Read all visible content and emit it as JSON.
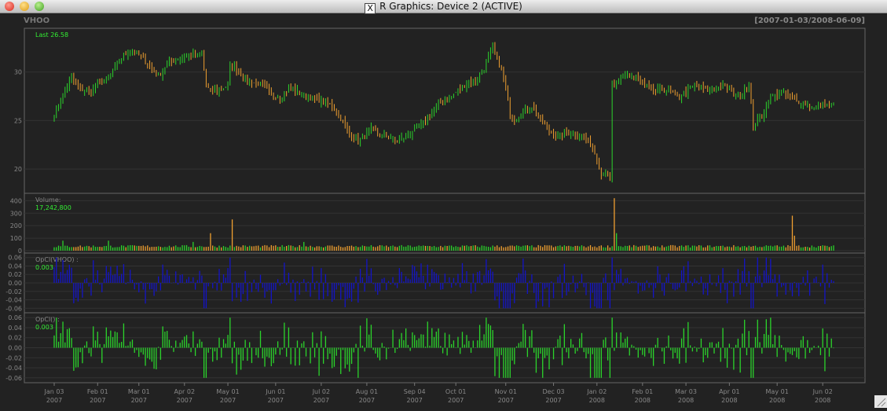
{
  "window": {
    "title": "R Graphics: Device 2 (ACTIVE)"
  },
  "colors": {
    "up": "#2bd42b",
    "down": "#f0a030",
    "opcl_vhoo": "#1414c8",
    "opcl": "#2bd42b",
    "label": "#777777",
    "green_text": "#33ee33"
  },
  "chart_data": {
    "type": "bar",
    "symbol": "VHOO",
    "date_range": "[2007-01-03/2008-06-09]",
    "panels": [
      {
        "id": "price",
        "label": "Last 26.58",
        "ylim": [
          17.5,
          34.5
        ],
        "yticks": [
          "20",
          "25",
          "30"
        ]
      },
      {
        "id": "volume",
        "label": "Volume:",
        "value_text": "17,242,800",
        "ylim": [
          0,
          440
        ],
        "yticks": [
          "0",
          "100",
          "200",
          "300",
          "400"
        ]
      },
      {
        "id": "opcl_vhoo",
        "label": "OpCl(VHOO) :",
        "value_text": "0.003",
        "ylim": [
          -0.065,
          0.065
        ],
        "yticks": [
          "-0.06",
          "-0.04",
          "-0.02",
          "0.00",
          "0.02",
          "0.04",
          "0.06"
        ]
      },
      {
        "id": "opcl",
        "label": "OpCl() :",
        "value_text": "0.003",
        "ylim": [
          -0.065,
          0.065
        ],
        "yticks": [
          "-0.06",
          "-0.04",
          "-0.02",
          "0.00",
          "0.02",
          "0.04",
          "0.06"
        ]
      }
    ],
    "x_ticks": [
      {
        "month": "Jan 03",
        "year": "2007",
        "i": 0
      },
      {
        "month": "Feb 01",
        "year": "2007",
        "i": 20
      },
      {
        "month": "Mar 01",
        "year": "2007",
        "i": 39
      },
      {
        "month": "Apr 02",
        "year": "2007",
        "i": 60
      },
      {
        "month": "May 01",
        "year": "2007",
        "i": 80
      },
      {
        "month": "Jun 01",
        "year": "2007",
        "i": 102
      },
      {
        "month": "Jul 02",
        "year": "2007",
        "i": 123
      },
      {
        "month": "Aug 01",
        "year": "2007",
        "i": 144
      },
      {
        "month": "Sep 04",
        "year": "2007",
        "i": 166
      },
      {
        "month": "Oct 01",
        "year": "2007",
        "i": 185
      },
      {
        "month": "Nov 01",
        "year": "2007",
        "i": 208
      },
      {
        "month": "Dec 03",
        "year": "2007",
        "i": 230
      },
      {
        "month": "Jan 02",
        "year": "2008",
        "i": 250
      },
      {
        "month": "Feb 01",
        "year": "2008",
        "i": 271
      },
      {
        "month": "Mar 03",
        "year": "2008",
        "i": 291
      },
      {
        "month": "Apr 01",
        "year": "2008",
        "i": 311
      },
      {
        "month": "May 01",
        "year": "2008",
        "i": 333
      },
      {
        "month": "Jun 02",
        "year": "2008",
        "i": 354
      }
    ],
    "n_bars": 360,
    "close_anchors": [
      [
        0,
        25.7
      ],
      [
        4,
        27.5
      ],
      [
        8,
        29.4
      ],
      [
        12,
        28.2
      ],
      [
        16,
        28.0
      ],
      [
        20,
        28.6
      ],
      [
        24,
        29.2
      ],
      [
        28,
        30.4
      ],
      [
        32,
        31.8
      ],
      [
        36,
        32.2
      ],
      [
        40,
        31.5
      ],
      [
        44,
        30.6
      ],
      [
        48,
        29.6
      ],
      [
        52,
        30.8
      ],
      [
        56,
        31.3
      ],
      [
        60,
        31.6
      ],
      [
        64,
        31.8
      ],
      [
        66,
        31.5
      ],
      [
        68,
        31.9
      ],
      [
        70,
        28.5
      ],
      [
        72,
        28.1
      ],
      [
        76,
        28.2
      ],
      [
        78,
        28.4
      ],
      [
        80,
        28.6
      ],
      [
        81,
        30.8
      ],
      [
        84,
        30.3
      ],
      [
        88,
        29.2
      ],
      [
        92,
        28.9
      ],
      [
        96,
        28.6
      ],
      [
        100,
        27.6
      ],
      [
        104,
        27.4
      ],
      [
        108,
        28.3
      ],
      [
        112,
        28.0
      ],
      [
        116,
        27.5
      ],
      [
        120,
        27.2
      ],
      [
        124,
        27.0
      ],
      [
        128,
        26.5
      ],
      [
        132,
        25.2
      ],
      [
        136,
        23.6
      ],
      [
        140,
        23.0
      ],
      [
        142,
        23.1
      ],
      [
        146,
        24.2
      ],
      [
        150,
        23.4
      ],
      [
        154,
        23.3
      ],
      [
        158,
        22.9
      ],
      [
        162,
        23.4
      ],
      [
        166,
        24.0
      ],
      [
        170,
        24.8
      ],
      [
        174,
        25.8
      ],
      [
        178,
        26.8
      ],
      [
        182,
        27.3
      ],
      [
        186,
        28.1
      ],
      [
        190,
        28.8
      ],
      [
        194,
        29.2
      ],
      [
        198,
        30.4
      ],
      [
        202,
        32.6
      ],
      [
        204,
        31.2
      ],
      [
        206,
        30.2
      ],
      [
        208,
        28.4
      ],
      [
        210,
        25.5
      ],
      [
        212,
        25.0
      ],
      [
        216,
        25.8
      ],
      [
        220,
        26.5
      ],
      [
        224,
        25.1
      ],
      [
        228,
        24.0
      ],
      [
        232,
        23.3
      ],
      [
        236,
        23.7
      ],
      [
        240,
        23.6
      ],
      [
        244,
        23.4
      ],
      [
        248,
        22.2
      ],
      [
        250,
        21.0
      ],
      [
        252,
        19.4
      ],
      [
        254,
        19.8
      ],
      [
        256,
        18.8
      ],
      [
        257,
        28.8
      ],
      [
        260,
        28.9
      ],
      [
        264,
        29.8
      ],
      [
        268,
        29.5
      ],
      [
        272,
        28.6
      ],
      [
        276,
        28.0
      ],
      [
        280,
        28.2
      ],
      [
        284,
        27.9
      ],
      [
        288,
        27.4
      ],
      [
        292,
        28.2
      ],
      [
        296,
        28.5
      ],
      [
        300,
        28.1
      ],
      [
        304,
        28.4
      ],
      [
        308,
        28.5
      ],
      [
        312,
        28.0
      ],
      [
        316,
        27.5
      ],
      [
        318,
        28.3
      ],
      [
        320,
        28.6
      ],
      [
        322,
        24.5
      ],
      [
        326,
        25.5
      ],
      [
        330,
        27.4
      ],
      [
        334,
        27.8
      ],
      [
        338,
        27.6
      ],
      [
        342,
        27.0
      ],
      [
        346,
        26.7
      ],
      [
        350,
        26.3
      ],
      [
        354,
        26.6
      ],
      [
        359,
        26.58
      ]
    ],
    "volume_spikes": [
      [
        4,
        80
      ],
      [
        25,
        80
      ],
      [
        64,
        70
      ],
      [
        72,
        140
      ],
      [
        82,
        250
      ],
      [
        115,
        70
      ],
      [
        258,
        420
      ],
      [
        259,
        140
      ],
      [
        340,
        280
      ],
      [
        341,
        120
      ]
    ],
    "volume_base": 25
  }
}
